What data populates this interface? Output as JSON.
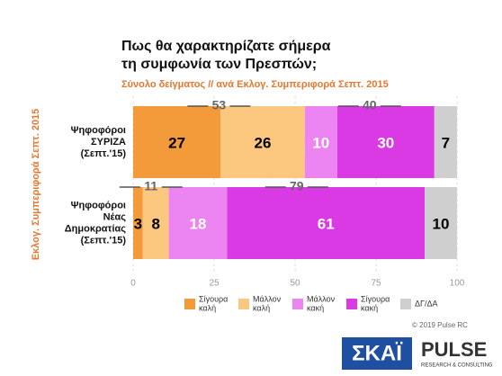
{
  "chart_data": {
    "type": "stacked-bar-horizontal",
    "title": [
      "Πως θα χαρακτηρίζατε σήμερα",
      "τη συμφωνία των Πρεσπών;"
    ],
    "subtitle": "Σύνολο δείγματος // ανά Εκλογ. Συμπεριφορά Σεπτ. 2015",
    "y_axis_label": "Εκλογ. Συμπεριφορά Σεπτ. 2015",
    "categories": [
      [
        "Ψηφοφόροι",
        "ΣΥΡΙΖΑ",
        "(Σεπτ.'15)"
      ],
      [
        "Ψηφοφόροι",
        "Νέας",
        "Δημοκρατίας",
        "(Σεπτ.'15)"
      ]
    ],
    "series": [
      {
        "name": [
          "Σίγουρα",
          "καλή"
        ],
        "color": "#f39a3b",
        "label_color": "#000000",
        "values": [
          27,
          3
        ]
      },
      {
        "name": [
          "Μάλλον",
          "καλή"
        ],
        "color": "#fcc87f",
        "label_color": "#000000",
        "values": [
          26,
          8
        ]
      },
      {
        "name": [
          "Μάλλον",
          "κακή"
        ],
        "color": "#ec84f2",
        "label_color": "#ffffff",
        "values": [
          10,
          18
        ]
      },
      {
        "name": [
          "Σίγουρα",
          "κακή"
        ],
        "color": "#d93ae4",
        "label_color": "#ffffff",
        "values": [
          30,
          61
        ]
      },
      {
        "name": [
          "ΔΓ/ΔΑ"
        ],
        "color": "#cfcfcf",
        "label_color": "#000000",
        "values": [
          7,
          10
        ]
      }
    ],
    "bracket_totals": [
      [
        53,
        40
      ],
      [
        11,
        79
      ]
    ],
    "xlim": [
      0,
      100
    ],
    "xticks": [
      0,
      25,
      50,
      75,
      100
    ],
    "grid": true
  },
  "footer": {
    "copyright": "© 2019 Pulse RC",
    "logo_skai": "ΣΚΑΪ",
    "logo_pulse": "PULSE",
    "logo_pulse_sub": "RESEARCH & CONSULTING"
  }
}
